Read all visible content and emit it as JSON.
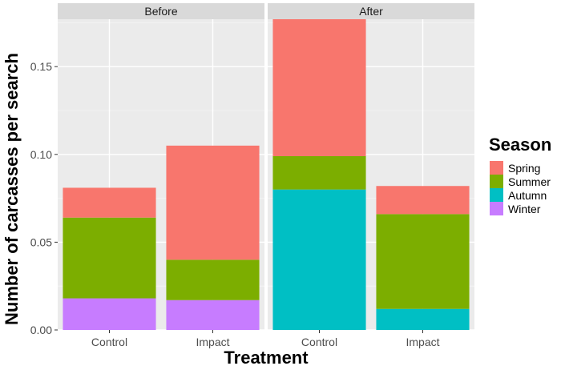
{
  "chart_data": {
    "type": "bar",
    "stacked": true,
    "facets": [
      {
        "label": "Before",
        "categories": [
          "Control",
          "Impact"
        ],
        "stacks": {
          "Control": {
            "Winter": 0.018,
            "Autumn": 0,
            "Summer": 0.046,
            "Spring": 0.017
          },
          "Impact": {
            "Winter": 0.017,
            "Autumn": 0,
            "Summer": 0.023,
            "Spring": 0.065
          }
        }
      },
      {
        "label": "After",
        "categories": [
          "Control",
          "Impact"
        ],
        "stacks": {
          "Control": {
            "Winter": 0,
            "Autumn": 0.08,
            "Summer": 0.019,
            "Spring": 0.078
          },
          "Impact": {
            "Winter": 0,
            "Autumn": 0.012,
            "Summer": 0.054,
            "Spring": 0.016
          }
        }
      }
    ],
    "stack_order": [
      "Winter",
      "Autumn",
      "Summer",
      "Spring"
    ],
    "legend": {
      "title": "Season",
      "placement": "right",
      "entries": [
        {
          "name": "Spring",
          "color": "#F8766D"
        },
        {
          "name": "Summer",
          "color": "#7CAE00"
        },
        {
          "name": "Autumn",
          "color": "#00BFC4"
        },
        {
          "name": "Winter",
          "color": "#C77CFF"
        }
      ]
    },
    "xlabel": "Treatment",
    "ylabel": "Number of carcasses per search",
    "ylim": [
      0,
      0.177
    ],
    "yticks": [
      0.0,
      0.05,
      0.1,
      0.15
    ],
    "ytick_labels": [
      "0.00",
      "0.05",
      "0.10",
      "0.15"
    ],
    "grid": true,
    "panel_background": "#EBEBEB",
    "strip_background": "#D9D9D9"
  }
}
